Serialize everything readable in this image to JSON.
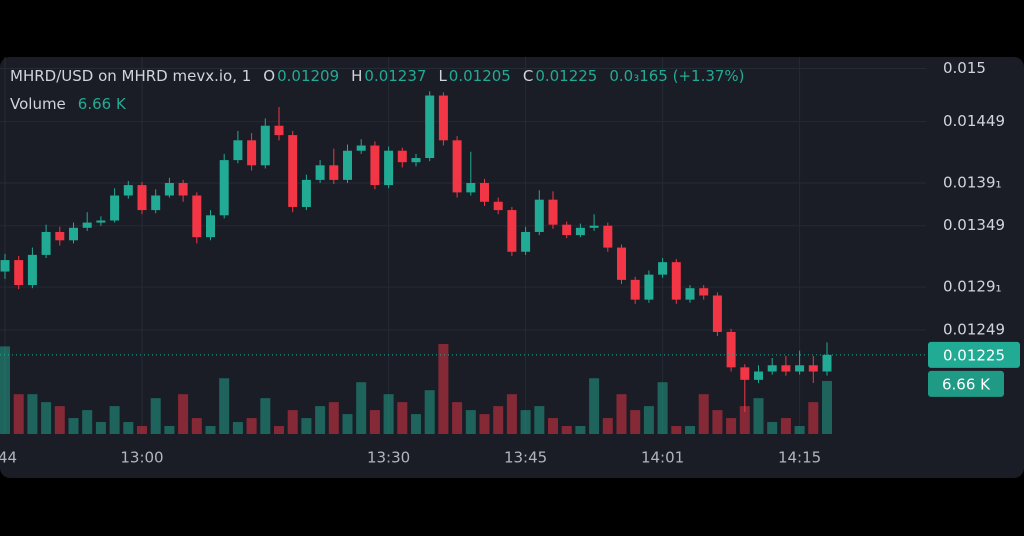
{
  "chart_data": {
    "type": "candlestick",
    "legend": {
      "symbol": "MHRD/USD on MHRD mevx.io, 1",
      "open_label": "O",
      "open": "0.01209",
      "high_label": "H",
      "high": "0.01237",
      "low_label": "L",
      "low": "0.01205",
      "close_label": "C",
      "close": "0.01225",
      "change": "0.0₃165 (+1.37%)",
      "volume_title": "Volume",
      "volume": "6.66 K"
    },
    "categories": [
      ":44",
      null,
      null,
      null,
      null,
      null,
      null,
      null,
      null,
      null,
      "13:00",
      null,
      null,
      null,
      null,
      null,
      null,
      null,
      null,
      null,
      null,
      null,
      null,
      null,
      null,
      null,
      null,
      null,
      "13:30",
      null,
      null,
      null,
      null,
      null,
      null,
      null,
      null,
      null,
      "13:45",
      null,
      null,
      null,
      null,
      null,
      null,
      null,
      null,
      null,
      "14:01",
      null,
      null,
      null,
      null,
      null,
      null,
      null,
      null,
      null,
      "14:15",
      null,
      null
    ],
    "open": [
      0.01305,
      0.01316,
      0.01292,
      0.01321,
      0.01343,
      0.01335,
      0.01347,
      0.01352,
      0.01354,
      0.01378,
      0.01388,
      0.01364,
      0.01378,
      0.0139,
      0.01378,
      0.01338,
      0.01359,
      0.01412,
      0.01431,
      0.01407,
      0.01445,
      0.01436,
      0.01367,
      0.01393,
      0.01407,
      0.01393,
      0.01421,
      0.01426,
      0.01388,
      0.01421,
      0.0141,
      0.01414,
      0.01474,
      0.01431,
      0.01381,
      0.0139,
      0.01372,
      0.01364,
      0.01324,
      0.01343,
      0.01374,
      0.0135,
      0.0134,
      0.01347,
      0.01349,
      0.01328,
      0.01297,
      0.01278,
      0.01302,
      0.01314,
      0.01278,
      0.01289,
      0.01282,
      0.01247,
      0.01213,
      0.01201,
      0.01209,
      0.01215,
      0.01209,
      0.01215,
      0.01209
    ],
    "high": [
      0.01322,
      0.0132,
      0.01328,
      0.0135,
      0.01348,
      0.01352,
      0.01362,
      0.01358,
      0.01385,
      0.01392,
      0.01391,
      0.01384,
      0.01395,
      0.01393,
      0.01381,
      0.01364,
      0.01418,
      0.0144,
      0.01438,
      0.01452,
      0.01463,
      0.0144,
      0.01398,
      0.01412,
      0.01423,
      0.01427,
      0.01432,
      0.0143,
      0.01425,
      0.01424,
      0.01418,
      0.01478,
      0.01477,
      0.01435,
      0.0142,
      0.01394,
      0.01376,
      0.01367,
      0.01348,
      0.01383,
      0.01382,
      0.01353,
      0.01351,
      0.0136,
      0.01352,
      0.01331,
      0.013,
      0.01306,
      0.01318,
      0.01317,
      0.01292,
      0.01292,
      0.01285,
      0.0125,
      0.01216,
      0.01215,
      0.01222,
      0.01224,
      0.01229,
      0.01224,
      0.01237
    ],
    "low": [
      0.01298,
      0.01288,
      0.01289,
      0.01318,
      0.0133,
      0.01332,
      0.01344,
      0.01349,
      0.01352,
      0.01375,
      0.0136,
      0.01361,
      0.01376,
      0.01372,
      0.01332,
      0.01335,
      0.01356,
      0.01409,
      0.01402,
      0.01404,
      0.01431,
      0.01362,
      0.01364,
      0.0139,
      0.01389,
      0.0139,
      0.01418,
      0.01384,
      0.01385,
      0.01405,
      0.01406,
      0.01411,
      0.01426,
      0.01376,
      0.01378,
      0.01368,
      0.0136,
      0.0132,
      0.01321,
      0.0134,
      0.01346,
      0.01337,
      0.01338,
      0.01344,
      0.01324,
      0.01293,
      0.01274,
      0.01275,
      0.01299,
      0.01274,
      0.01275,
      0.01278,
      0.01243,
      0.01209,
      0.0117,
      0.01198,
      0.01206,
      0.01205,
      0.01206,
      0.01198,
      0.01205
    ],
    "close": [
      0.01316,
      0.01292,
      0.01321,
      0.01343,
      0.01335,
      0.01347,
      0.01352,
      0.01354,
      0.01378,
      0.01388,
      0.01364,
      0.01378,
      0.0139,
      0.01378,
      0.01338,
      0.01359,
      0.01412,
      0.01431,
      0.01407,
      0.01445,
      0.01436,
      0.01367,
      0.01393,
      0.01407,
      0.01393,
      0.01421,
      0.01426,
      0.01388,
      0.01421,
      0.0141,
      0.01414,
      0.01474,
      0.01431,
      0.01381,
      0.0139,
      0.01372,
      0.01364,
      0.01324,
      0.01343,
      0.01374,
      0.0135,
      0.0134,
      0.01347,
      0.01349,
      0.01328,
      0.01297,
      0.01278,
      0.01302,
      0.01314,
      0.01278,
      0.01289,
      0.01282,
      0.01247,
      0.01213,
      0.01201,
      0.01209,
      0.01215,
      0.01209,
      0.01215,
      0.01209,
      0.01225
    ],
    "volume_values": [
      11,
      5,
      5,
      4,
      3.5,
      2,
      3,
      1.5,
      3.5,
      1.5,
      1,
      4.5,
      1,
      5,
      2,
      1,
      7,
      1.5,
      2,
      4.5,
      1,
      3,
      2,
      3.5,
      4,
      2.5,
      6.5,
      3,
      5,
      4,
      2.5,
      5.5,
      11.3,
      4,
      3,
      2.5,
      3.5,
      5,
      3,
      3.5,
      2,
      1,
      1,
      7,
      2,
      5,
      3,
      3.5,
      6.5,
      1,
      1,
      5,
      3,
      2,
      3.5,
      4.5,
      1.5,
      2,
      1,
      4,
      6.66
    ],
    "up_color": "#22ab94",
    "down_color": "#f23645",
    "ylim": [
      0.01149,
      0.01511
    ],
    "yticks": [
      0.015,
      0.01449,
      {
        "value": 0.0139,
        "label": "0.0139₁"
      },
      0.01349,
      {
        "value": 0.0129,
        "label": "0.0129₁"
      },
      0.01249
    ],
    "grid": true
  }
}
